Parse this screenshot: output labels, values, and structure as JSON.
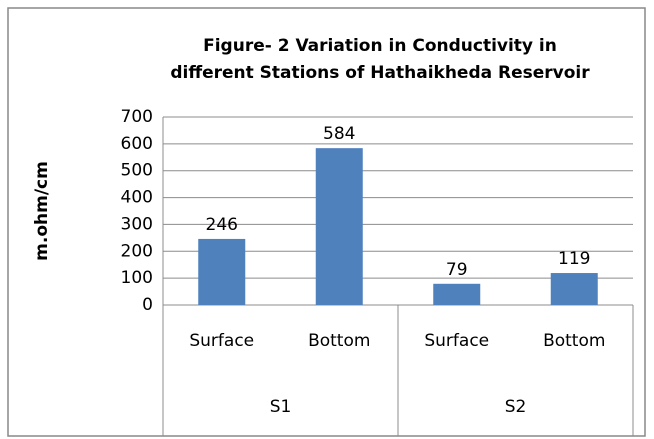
{
  "chart_data": {
    "type": "bar",
    "title": [
      "Figure- 2 Variation in Conductivity in",
      "different Stations of Hathaikheda Reservoir"
    ],
    "ylabel": "m.ohm/cm",
    "categories": [
      "Surface",
      "Bottom",
      "Surface",
      "Bottom"
    ],
    "groups": [
      "S1",
      "S2"
    ],
    "values": [
      246,
      584,
      79,
      119
    ],
    "color": "#4f81bd",
    "ylim": [
      0,
      700
    ],
    "yticks": [
      0,
      100,
      200,
      300,
      400,
      500,
      600,
      700
    ],
    "grid": true
  }
}
